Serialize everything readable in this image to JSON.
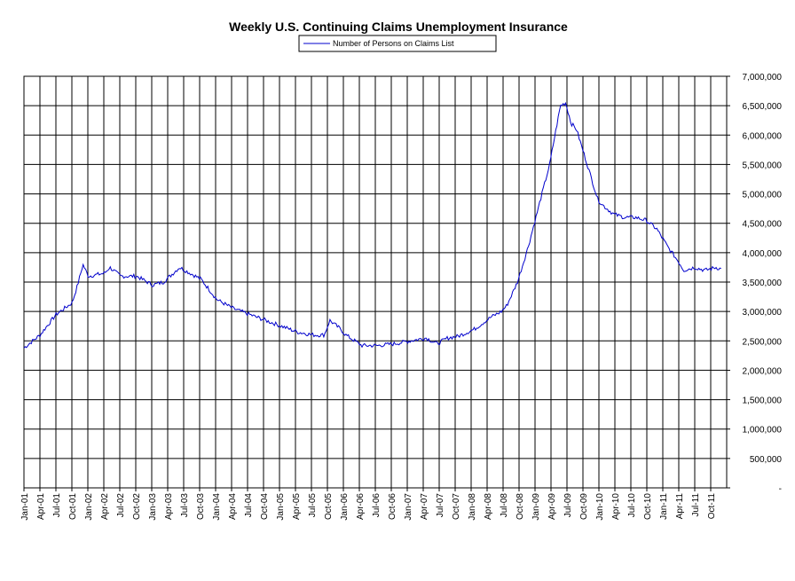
{
  "chart_data": {
    "type": "line",
    "title": "Weekly U.S. Continuing Claims Unemployment Insurance",
    "xlabel": "",
    "ylabel": "",
    "legend": {
      "placement": "top-center"
    },
    "grid": true,
    "ylim": [
      0,
      7000000
    ],
    "x_range": [
      "2001-01",
      "2011-12"
    ],
    "y_ticks": [
      0,
      500000,
      1000000,
      1500000,
      2000000,
      2500000,
      3000000,
      3500000,
      4000000,
      4500000,
      5000000,
      5500000,
      6000000,
      6500000,
      7000000
    ],
    "y_tick_labels": [
      "-",
      "500,000",
      "1,000,000",
      "1,500,000",
      "2,000,000",
      "2,500,000",
      "3,000,000",
      "3,500,000",
      "4,000,000",
      "4,500,000",
      "5,000,000",
      "5,500,000",
      "6,000,000",
      "6,500,000",
      "7,000,000"
    ],
    "x_tick_labels": [
      "Jan-01",
      "Apr-01",
      "Jul-01",
      "Oct-01",
      "Jan-02",
      "Apr-02",
      "Jul-02",
      "Oct-02",
      "Jan-03",
      "Apr-03",
      "Jul-03",
      "Oct-03",
      "Jan-04",
      "Apr-04",
      "Jul-04",
      "Oct-04",
      "Jan-05",
      "Apr-05",
      "Jul-05",
      "Oct-05",
      "Jan-06",
      "Apr-06",
      "Jul-06",
      "Oct-06",
      "Jan-07",
      "Apr-07",
      "Jul-07",
      "Oct-07",
      "Jan-08",
      "Apr-08",
      "Jul-08",
      "Oct-08",
      "Jan-09",
      "Apr-09",
      "Jul-09",
      "Oct-09",
      "Jan-10",
      "Apr-10",
      "Jul-10",
      "Oct-10",
      "Jan-11",
      "Apr-11",
      "Jul-11",
      "Oct-11"
    ],
    "series": [
      {
        "name": "Number of Persons on Claims List",
        "color": "#0000cc",
        "x": [
          "2001-01",
          "2001-04",
          "2001-07",
          "2001-10",
          "2001-11",
          "2001-12",
          "2002-01",
          "2002-04",
          "2002-05",
          "2002-07",
          "2002-10",
          "2003-01",
          "2003-03",
          "2003-06",
          "2003-08",
          "2003-10",
          "2004-01",
          "2004-04",
          "2004-07",
          "2004-10",
          "2005-01",
          "2005-04",
          "2005-07",
          "2005-09",
          "2005-10",
          "2005-12",
          "2006-01",
          "2006-04",
          "2006-07",
          "2006-10",
          "2007-01",
          "2007-04",
          "2007-06",
          "2007-08",
          "2007-10",
          "2008-01",
          "2008-04",
          "2008-06",
          "2008-07",
          "2008-09",
          "2008-11",
          "2009-01",
          "2009-03",
          "2009-04",
          "2009-05",
          "2009-06",
          "2009-07",
          "2009-08",
          "2009-09",
          "2009-10",
          "2009-12",
          "2010-01",
          "2010-03",
          "2010-05",
          "2010-07",
          "2010-09",
          "2010-11",
          "2011-01",
          "2011-03",
          "2011-04",
          "2011-06",
          "2011-08",
          "2011-10",
          "2011-11"
        ],
        "values": [
          2380000,
          2600000,
          2950000,
          3150000,
          3450000,
          3800000,
          3600000,
          3650000,
          3750000,
          3600000,
          3600000,
          3450000,
          3500000,
          3750000,
          3650000,
          3550000,
          3200000,
          3050000,
          2950000,
          2850000,
          2750000,
          2650000,
          2600000,
          2600000,
          2850000,
          2700000,
          2600000,
          2420000,
          2420000,
          2450000,
          2500000,
          2550000,
          2450000,
          2550000,
          2580000,
          2700000,
          2900000,
          3000000,
          3100000,
          3500000,
          4100000,
          4800000,
          5500000,
          6000000,
          6500000,
          6550000,
          6200000,
          6100000,
          5800000,
          5500000,
          4900000,
          4800000,
          4650000,
          4600000,
          4600000,
          4550000,
          4400000,
          4100000,
          3850000,
          3700000,
          3750000,
          3700000,
          3750000,
          3720000
        ]
      }
    ]
  }
}
